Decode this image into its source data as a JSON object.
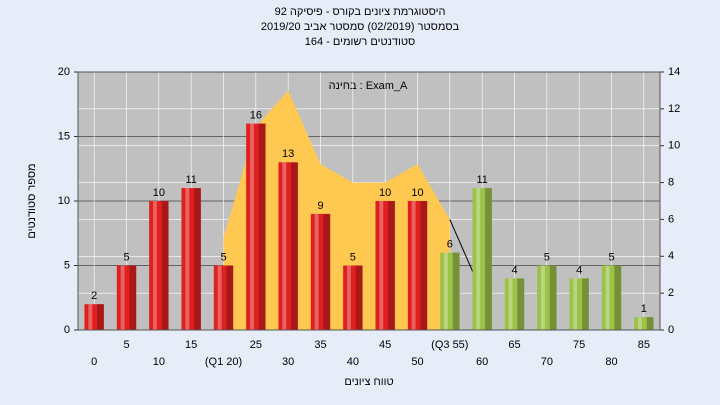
{
  "chart_data": {
    "type": "bar",
    "title": [
      "היסטוגרמת ציונים בקורס - פיסיקה 92",
      "בסמסטר (02/2019)  סמסטר אביב 2019/20",
      "164 - סטודנטים רשומים"
    ],
    "annotation": "בחינה : Exam_A",
    "xlabel": "טווח ציונים",
    "ylabel": "מספר סטודנטים",
    "categories": [
      "0",
      "5",
      "10",
      "15",
      "(Q1 20)",
      "25",
      "30",
      "35",
      "40",
      "45",
      "50",
      "(Q3 55)",
      "60",
      "65",
      "70",
      "75",
      "80",
      "85"
    ],
    "values": [
      2,
      5,
      10,
      11,
      5,
      16,
      13,
      9,
      5,
      10,
      10,
      6,
      11,
      4,
      5,
      4,
      5,
      1
    ],
    "colors": [
      "#e02020",
      "#e02020",
      "#e02020",
      "#e02020",
      "#e02020",
      "#e02020",
      "#e02020",
      "#e02020",
      "#e02020",
      "#e02020",
      "#e02020",
      "#9cc24a",
      "#9cc24a",
      "#9cc24a",
      "#9cc24a",
      "#9cc24a",
      "#9cc24a",
      "#9cc24a"
    ],
    "curves": [
      {
        "type": "area",
        "axis": "y2",
        "color": "#ffc850",
        "values": [
          null,
          null,
          null,
          null,
          5,
          11,
          13,
          9,
          8,
          8,
          9,
          6,
          null,
          null,
          null,
          null,
          null,
          null
        ]
      },
      {
        "type": "line",
        "axis": "y2",
        "color": "#000000",
        "values": [
          null,
          null,
          null,
          null,
          null,
          null,
          null,
          null,
          null,
          null,
          null,
          6,
          2,
          null,
          null,
          null,
          null,
          null
        ]
      }
    ],
    "ylim": [
      0,
      20
    ],
    "yticks": [
      0,
      5,
      10,
      15,
      20
    ],
    "y2lim": [
      0,
      14
    ],
    "y2ticks": [
      0,
      2,
      4,
      6,
      8,
      10,
      12,
      14
    ],
    "grid": true
  }
}
